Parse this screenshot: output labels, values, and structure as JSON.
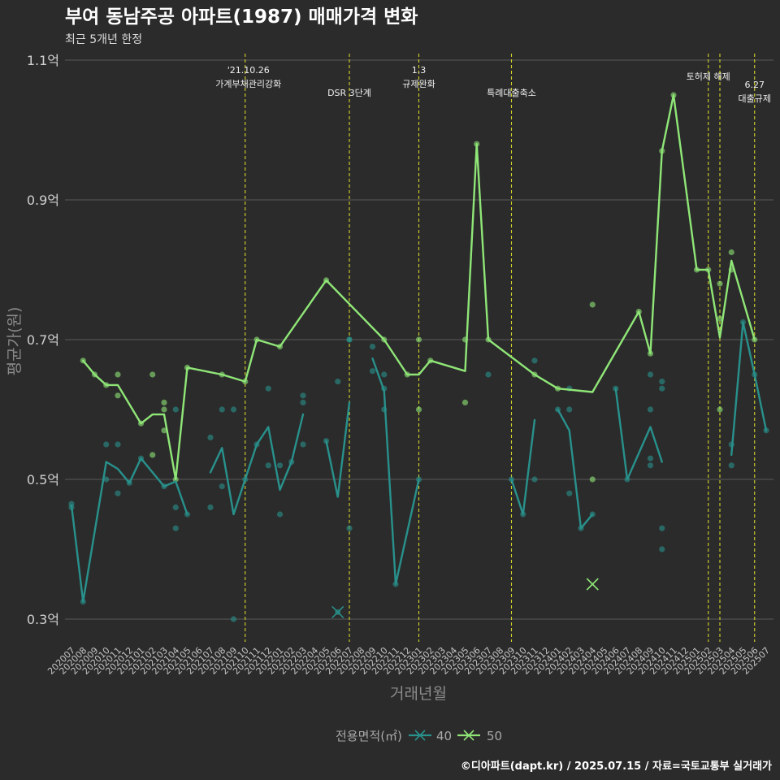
{
  "chart_data": {
    "type": "line",
    "title": "부여 동남주공 아파트(1987) 매매가격 변화",
    "subtitle": "최근 5개년 한정",
    "xlabel": "거래년월",
    "ylabel": "평균가(원)",
    "ylim": [
      0.27,
      1.12
    ],
    "grid": "horizontal major",
    "y_ticks": [
      {
        "value": 0.3,
        "label": "0.3억"
      },
      {
        "value": 0.5,
        "label": "0.5억"
      },
      {
        "value": 0.7,
        "label": "0.7억"
      },
      {
        "value": 0.9,
        "label": "0.9억"
      },
      {
        "value": 1.1,
        "label": "1.1억"
      }
    ],
    "categories": [
      "202007",
      "202008",
      "202009",
      "202010",
      "202011",
      "202012",
      "202101",
      "202102",
      "202103",
      "202104",
      "202105",
      "202106",
      "202107",
      "202108",
      "202109",
      "202110",
      "202111",
      "202112",
      "202201",
      "202202",
      "202203",
      "202204",
      "202205",
      "202206",
      "202207",
      "202208",
      "202209",
      "202210",
      "202211",
      "202212",
      "202301",
      "202302",
      "202303",
      "202304",
      "202305",
      "202306",
      "202307",
      "202308",
      "202309",
      "202310",
      "202311",
      "202312",
      "202401",
      "202402",
      "202403",
      "202404",
      "202405",
      "202406",
      "202407",
      "202408",
      "202409",
      "202410",
      "202411",
      "202412",
      "202501",
      "202502",
      "202503",
      "202504",
      "202505",
      "202506",
      "202507"
    ],
    "legend": {
      "title": "전용면적(㎡)",
      "position": "bottom",
      "items": [
        {
          "label": "40",
          "color": "#28918c"
        },
        {
          "label": "50",
          "color": "#8fe677"
        }
      ]
    },
    "event_line_color": "#d4d42a",
    "events": [
      {
        "month": "202110",
        "label": [
          "'21.10.26",
          "가계부채관리강화"
        ]
      },
      {
        "month": "202207",
        "label": [
          "DSR 3단계"
        ]
      },
      {
        "month": "202301",
        "label": [
          "1.3",
          "규제완화"
        ]
      },
      {
        "month": "202309",
        "label": [
          "특례대출축소"
        ]
      },
      {
        "month": "202502",
        "label": [
          "토허제 해제"
        ]
      },
      {
        "month": "202503",
        "label": []
      },
      {
        "month": "202506",
        "label": [
          "6.27",
          "대출규제"
        ]
      }
    ],
    "series": [
      {
        "name": "40",
        "color": "#28918c",
        "line_segments": [
          [
            [
              "202007",
              0.463
            ],
            [
              "202008",
              0.325
            ],
            [
              "202010",
              0.525
            ],
            [
              "202011",
              0.515
            ],
            [
              "202012",
              0.495
            ],
            [
              "202101",
              0.53
            ],
            [
              "202103",
              0.49
            ],
            [
              "202104",
              0.497
            ],
            [
              "202105",
              0.45
            ]
          ],
          [
            [
              "202107",
              0.51
            ],
            [
              "202108",
              0.545
            ],
            [
              "202109",
              0.45
            ],
            [
              "202110",
              0.5
            ],
            [
              "202111",
              0.55
            ],
            [
              "202112",
              0.575
            ],
            [
              "202201",
              0.485
            ],
            [
              "202202",
              0.525
            ],
            [
              "202203",
              0.593
            ]
          ],
          [
            [
              "202205",
              0.555
            ],
            [
              "202206",
              0.475
            ],
            [
              "202207",
              0.61
            ]
          ],
          [
            [
              "202209",
              0.673
            ],
            [
              "202210",
              0.627
            ],
            [
              "202211",
              0.35
            ],
            [
              "202301",
              0.5
            ]
          ],
          [
            [
              "202307",
              0.65
            ]
          ],
          [
            [
              "202309",
              0.5
            ],
            [
              "202310",
              0.45
            ],
            [
              "202311",
              0.585
            ]
          ],
          [
            [
              "202401",
              0.6
            ],
            [
              "202402",
              0.57
            ],
            [
              "202403",
              0.43
            ],
            [
              "202404",
              0.45
            ]
          ],
          [
            [
              "202406",
              0.63
            ],
            [
              "202407",
              0.5
            ],
            [
              "202409",
              0.575
            ],
            [
              "202410",
              0.525
            ]
          ],
          [
            [
              "202504",
              0.535
            ],
            [
              "202505",
              0.725
            ],
            [
              "202506",
              0.65
            ],
            [
              "202507",
              0.57
            ]
          ]
        ],
        "points": [
          [
            "202007",
            0.465
          ],
          [
            "202007",
            0.46
          ],
          [
            "202008",
            0.325
          ],
          [
            "202010",
            0.55
          ],
          [
            "202010",
            0.5
          ],
          [
            "202011",
            0.55
          ],
          [
            "202011",
            0.48
          ],
          [
            "202012",
            0.495
          ],
          [
            "202101",
            0.53
          ],
          [
            "202103",
            0.49
          ],
          [
            "202104",
            0.6
          ],
          [
            "202104",
            0.46
          ],
          [
            "202104",
            0.43
          ],
          [
            "202105",
            0.45
          ],
          [
            "202107",
            0.56
          ],
          [
            "202107",
            0.46
          ],
          [
            "202108",
            0.6
          ],
          [
            "202108",
            0.49
          ],
          [
            "202109",
            0.6
          ],
          [
            "202109",
            0.3
          ],
          [
            "202110",
            0.5
          ],
          [
            "202111",
            0.55
          ],
          [
            "202112",
            0.63
          ],
          [
            "202112",
            0.52
          ],
          [
            "202201",
            0.52
          ],
          [
            "202201",
            0.45
          ],
          [
            "202202",
            0.525
          ],
          [
            "202203",
            0.62
          ],
          [
            "202203",
            0.61
          ],
          [
            "202203",
            0.55
          ],
          [
            "202205",
            0.555
          ],
          [
            "202206",
            0.64
          ],
          [
            "202206",
            0.31
          ],
          [
            "202207",
            0.7
          ],
          [
            "202207",
            0.7
          ],
          [
            "202207",
            0.43
          ],
          [
            "202209",
            0.69
          ],
          [
            "202209",
            0.655
          ],
          [
            "202210",
            0.65
          ],
          [
            "202210",
            0.63
          ],
          [
            "202210",
            0.6
          ],
          [
            "202211",
            0.35
          ],
          [
            "202301",
            0.5
          ],
          [
            "202307",
            0.65
          ],
          [
            "202309",
            0.5
          ],
          [
            "202310",
            0.45
          ],
          [
            "202311",
            0.67
          ],
          [
            "202311",
            0.5
          ],
          [
            "202401",
            0.6
          ],
          [
            "202402",
            0.63
          ],
          [
            "202402",
            0.6
          ],
          [
            "202402",
            0.48
          ],
          [
            "202403",
            0.43
          ],
          [
            "202404",
            0.45
          ],
          [
            "202406",
            0.63
          ],
          [
            "202407",
            0.5
          ],
          [
            "202409",
            0.65
          ],
          [
            "202409",
            0.6
          ],
          [
            "202409",
            0.53
          ],
          [
            "202409",
            0.52
          ],
          [
            "202410",
            0.64
          ],
          [
            "202410",
            0.63
          ],
          [
            "202410",
            0.43
          ],
          [
            "202410",
            0.4
          ],
          [
            "202504",
            0.55
          ],
          [
            "202504",
            0.52
          ],
          [
            "202505",
            0.725
          ],
          [
            "202506",
            0.65
          ],
          [
            "202507",
            0.57
          ]
        ],
        "x_marked_points": [
          [
            "202206",
            0.31
          ]
        ]
      },
      {
        "name": "50",
        "color": "#8fe677",
        "line_segments": [
          [
            [
              "202008",
              0.67
            ],
            [
              "202009",
              0.65
            ],
            [
              "202010",
              0.635
            ],
            [
              "202011",
              0.635
            ],
            [
              "202101",
              0.58
            ],
            [
              "202102",
              0.593
            ],
            [
              "202103",
              0.593
            ],
            [
              "202104",
              0.5
            ],
            [
              "202105",
              0.66
            ],
            [
              "202108",
              0.65
            ],
            [
              "202110",
              0.64
            ],
            [
              "202111",
              0.7
            ],
            [
              "202201",
              0.69
            ],
            [
              "202205",
              0.785
            ],
            [
              "202210",
              0.7
            ],
            [
              "202212",
              0.65
            ],
            [
              "202301",
              0.65
            ],
            [
              "202302",
              0.67
            ],
            [
              "202305",
              0.655
            ],
            [
              "202306",
              0.98
            ],
            [
              "202307",
              0.7
            ],
            [
              "202311",
              0.65
            ],
            [
              "202401",
              0.63
            ],
            [
              "202404",
              0.625
            ],
            [
              "202408",
              0.74
            ],
            [
              "202409",
              0.68
            ],
            [
              "202410",
              0.97
            ],
            [
              "202411",
              1.05
            ],
            [
              "202501",
              0.8
            ],
            [
              "202502",
              0.8
            ],
            [
              "202503",
              0.703
            ],
            [
              "202504",
              0.813
            ],
            [
              "202506",
              0.7
            ]
          ]
        ],
        "points": [
          [
            "202008",
            0.67
          ],
          [
            "202009",
            0.65
          ],
          [
            "202010",
            0.635
          ],
          [
            "202011",
            0.65
          ],
          [
            "202011",
            0.62
          ],
          [
            "202101",
            0.58
          ],
          [
            "202102",
            0.65
          ],
          [
            "202102",
            0.535
          ],
          [
            "202103",
            0.61
          ],
          [
            "202103",
            0.6
          ],
          [
            "202103",
            0.57
          ],
          [
            "202104",
            0.5
          ],
          [
            "202105",
            0.66
          ],
          [
            "202108",
            0.65
          ],
          [
            "202110",
            0.64
          ],
          [
            "202111",
            0.7
          ],
          [
            "202201",
            0.69
          ],
          [
            "202205",
            0.785
          ],
          [
            "202210",
            0.7
          ],
          [
            "202212",
            0.65
          ],
          [
            "202301",
            0.7
          ],
          [
            "202301",
            0.6
          ],
          [
            "202302",
            0.67
          ],
          [
            "202305",
            0.7
          ],
          [
            "202305",
            0.61
          ],
          [
            "202306",
            0.98
          ],
          [
            "202307",
            0.7
          ],
          [
            "202311",
            0.65
          ],
          [
            "202401",
            0.63
          ],
          [
            "202404",
            0.75
          ],
          [
            "202404",
            0.5
          ],
          [
            "202408",
            0.74
          ],
          [
            "202409",
            0.68
          ],
          [
            "202410",
            0.97
          ],
          [
            "202411",
            1.05
          ],
          [
            "202501",
            0.8
          ],
          [
            "202502",
            0.8
          ],
          [
            "202503",
            0.78
          ],
          [
            "202503",
            0.73
          ],
          [
            "202503",
            0.6
          ],
          [
            "202504",
            0.825
          ],
          [
            "202504",
            0.8
          ],
          [
            "202506",
            0.7
          ]
        ],
        "x_marked_points": [
          [
            "202404",
            0.35
          ]
        ]
      }
    ]
  },
  "footer": "©디아파트(dapt.kr) / 2025.07.15 / 자료=국토교통부 실거래가"
}
